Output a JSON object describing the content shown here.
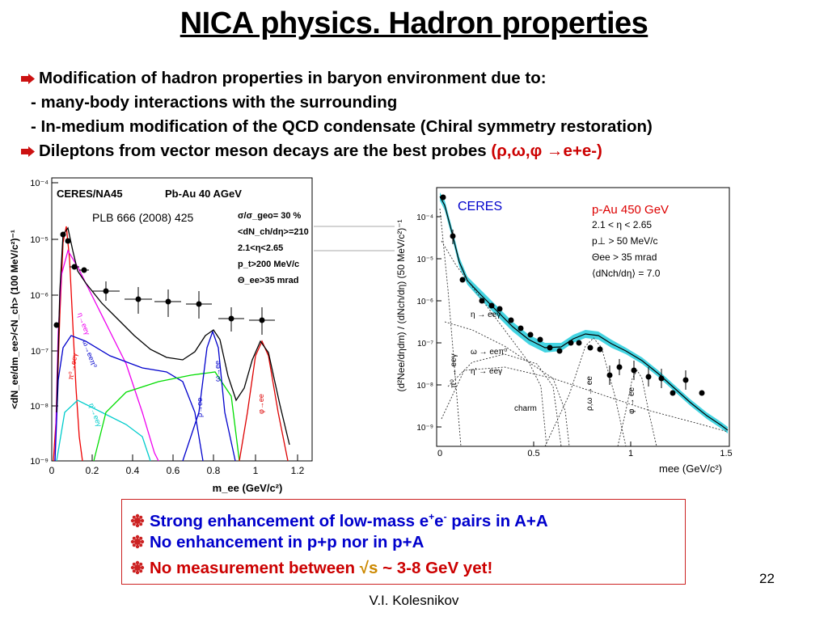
{
  "title": "NICA physics. Hadron properties",
  "bullets": {
    "b1": "Modification of hadron properties in baryon environment due to:",
    "s1": "- many-body interactions with the surrounding",
    "s2": "- In-medium modification of the QCD condensate (Chiral symmetry restoration)",
    "b2": "Dileptons from vector meson decays are the best probes",
    "b2_probes": "(ρ,ω,φ →e+e-)"
  },
  "left_plot": {
    "header1": "CERES/NA45",
    "header2": "Pb-Au 40 AGeV",
    "ref": "PLB 666 (2008) 425",
    "cuts": [
      "σ/σ_geo= 30 %",
      "<dN_ch/dη>=210",
      "2.1<η<2.65",
      "p_t>200 MeV/c",
      "Θ_ee>35 mrad"
    ],
    "ylabel": "<dN_ee/dm_ee>/<N_ch> (100 MeV/c²)⁻¹",
    "xlabel": "m_ee (GeV/c²)",
    "xticks": [
      "0",
      "0.2",
      "0.4",
      "0.6",
      "0.8",
      "1",
      "1.2"
    ],
    "yticks": [
      "10⁻⁴",
      "10⁻⁵",
      "10⁻⁶",
      "10⁻⁷",
      "10⁻⁸",
      "10⁻⁹"
    ],
    "labels": {
      "pi0": "π⁰→eeγ",
      "eta": "η→eeγ",
      "omega": "ω→eeπ⁰",
      "etap": "η'→eeγ",
      "rho": "ρ→ee",
      "omegaee": "ω→ee",
      "phi": "φ→ee"
    }
  },
  "right_plot": {
    "header": "CERES",
    "system": "p-Au 450 GeV",
    "cuts": [
      "2.1 < η < 2.65",
      "p⊥ > 50 MeV/c",
      "Θee > 35 mrad",
      "⟨dNch/dη⟩ = 7.0"
    ],
    "ylabel": "(d²Nee/dηdm) / (dNch/dη) (50 MeV/c²)⁻¹",
    "xlabel": "mee (GeV/c²)",
    "xticks": [
      "0",
      "0.5",
      "1",
      "1.5"
    ],
    "yticks": [
      "10⁻⁴",
      "10⁻⁵",
      "10⁻⁶",
      "10⁻⁷",
      "10⁻⁸",
      "10⁻⁹"
    ],
    "labels": {
      "eta": "η → eeγ",
      "omega": "ω → eeπ⁰",
      "etap": "η' → eeγ",
      "pi0": "π⁰ → eeγ",
      "charm": "charm",
      "rho": "ρ,ω → ee",
      "phi": "φ → ee"
    }
  },
  "box": {
    "l1a": "Strong enhancement of low-mass e",
    "l1b": "+",
    "l1c": "e",
    "l1d": "-",
    "l1e": " pairs in A+A",
    "l2": "No enhancement in p+p nor in p+A",
    "l3a": "No measurement between ",
    "l3b": "√s",
    "l3c": " ~ 3-8 GeV  yet!"
  },
  "page_number": "22",
  "footer": "V.I. Kolesnikov",
  "colors": {
    "accent_red": "#cc0000",
    "blue": "#0000cc",
    "band": "#22ccdd"
  }
}
